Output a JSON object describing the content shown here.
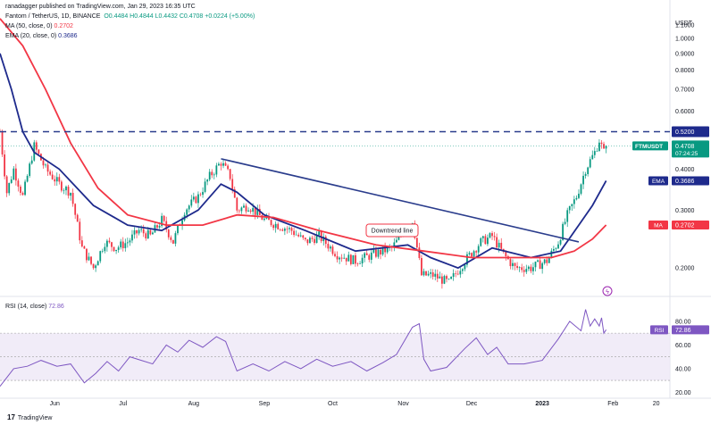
{
  "header": {
    "published": "ranadagger published on TradingView.com, Jan 29, 2023 16:35 UTC",
    "symbol": "Fantom / TetherUS, 1D, BINANCE",
    "ohlc": "O0.4484 H0.4844 L0.4432 C0.4708 +0.0224 (+5.00%)",
    "ma_label": "MA (50, close, 0)",
    "ma_value": "0.2702",
    "ema_label": "EMA (20, close, 0)",
    "ema_value": "0.3686",
    "rsi_label": "RSI (14, close)",
    "rsi_value": "72.86",
    "currency": "USDT"
  },
  "footer": {
    "logo_text": "TradingView"
  },
  "colors": {
    "up": "#089981",
    "down": "#f23645",
    "ma": "#f23645",
    "ema": "#1e2a8c",
    "trendline": "#2a3c8c",
    "resistance": "#2a3c8c",
    "rsi": "#7e57c2",
    "rsi_band": "#ede7f6"
  },
  "chart_data": [
    {
      "type": "candlestick",
      "title": "Fantom / TetherUS, 1D, BINANCE",
      "ylim": [
        0.17,
        1.2
      ],
      "y_scale": "log",
      "y_ticks": [
        "1.1000",
        "1.0000",
        "0.9000",
        "0.8000",
        "0.7000",
        "0.6000",
        "0.4000",
        "0.3000",
        "0.2000"
      ],
      "x_ticks": [
        "Jun",
        "Jul",
        "Aug",
        "Sep",
        "Oct",
        "Nov",
        "Dec",
        "2023",
        "Feb",
        "20"
      ],
      "x_dates": [
        "2022-06-01",
        "2022-07-01",
        "2022-08-01",
        "2022-09-01",
        "2022-10-01",
        "2022-11-01",
        "2022-12-01",
        "2023-01-01",
        "2023-02-01",
        "2023-02-20"
      ],
      "x_range": [
        "2022-05-08",
        "2023-02-26"
      ],
      "last_price": {
        "label": "FTMUSDT",
        "value": "0.4708",
        "countdown": "07:24:25"
      },
      "resistance": {
        "value": "0.5200",
        "label": "0.5200"
      },
      "trendline": {
        "label": "Downtrend line",
        "from": [
          "2022-08-13",
          0.43
        ],
        "to": [
          "2023-01-17",
          0.24
        ]
      },
      "price_path": [
        [
          "2022-05-08",
          0.52
        ],
        [
          "2022-05-11",
          0.34
        ],
        [
          "2022-05-14",
          0.4
        ],
        [
          "2022-05-18",
          0.33
        ],
        [
          "2022-05-23",
          0.47
        ],
        [
          "2022-05-28",
          0.4
        ],
        [
          "2022-06-03",
          0.36
        ],
        [
          "2022-06-08",
          0.34
        ],
        [
          "2022-06-13",
          0.23
        ],
        [
          "2022-06-18",
          0.2
        ],
        [
          "2022-06-23",
          0.24
        ],
        [
          "2022-06-28",
          0.23
        ],
        [
          "2022-07-03",
          0.24
        ],
        [
          "2022-07-08",
          0.26
        ],
        [
          "2022-07-13",
          0.25
        ],
        [
          "2022-07-18",
          0.28
        ],
        [
          "2022-07-23",
          0.24
        ],
        [
          "2022-07-28",
          0.3
        ],
        [
          "2022-08-03",
          0.33
        ],
        [
          "2022-08-08",
          0.38
        ],
        [
          "2022-08-13",
          0.42
        ],
        [
          "2022-08-17",
          0.38
        ],
        [
          "2022-08-20",
          0.3
        ],
        [
          "2022-08-25",
          0.31
        ],
        [
          "2022-09-01",
          0.28
        ],
        [
          "2022-09-07",
          0.27
        ],
        [
          "2022-09-13",
          0.26
        ],
        [
          "2022-09-19",
          0.24
        ],
        [
          "2022-09-25",
          0.25
        ],
        [
          "2022-10-03",
          0.22
        ],
        [
          "2022-10-11",
          0.21
        ],
        [
          "2022-10-19",
          0.22
        ],
        [
          "2022-10-27",
          0.23
        ],
        [
          "2022-11-05",
          0.28
        ],
        [
          "2022-11-09",
          0.19
        ],
        [
          "2022-11-14",
          0.19
        ],
        [
          "2022-11-21",
          0.18
        ],
        [
          "2022-11-28",
          0.21
        ],
        [
          "2022-12-05",
          0.24
        ],
        [
          "2022-12-10",
          0.25
        ],
        [
          "2022-12-15",
          0.22
        ],
        [
          "2022-12-20",
          0.2
        ],
        [
          "2022-12-27",
          0.2
        ],
        [
          "2023-01-03",
          0.21
        ],
        [
          "2023-01-08",
          0.24
        ],
        [
          "2023-01-12",
          0.29
        ],
        [
          "2023-01-16",
          0.33
        ],
        [
          "2023-01-20",
          0.4
        ],
        [
          "2023-01-24",
          0.45
        ],
        [
          "2023-01-26",
          0.49
        ],
        [
          "2023-01-28",
          0.45
        ],
        [
          "2023-01-29",
          0.47
        ]
      ],
      "series": [
        {
          "name": "EMA (20, close, 0)",
          "color": "#1e2a8c",
          "points": [
            [
              "2022-05-08",
              0.9
            ],
            [
              "2022-05-13",
              0.7
            ],
            [
              "2022-05-18",
              0.52
            ],
            [
              "2022-05-23",
              0.45
            ],
            [
              "2022-06-03",
              0.4
            ],
            [
              "2022-06-18",
              0.31
            ],
            [
              "2022-07-03",
              0.27
            ],
            [
              "2022-07-18",
              0.26
            ],
            [
              "2022-08-03",
              0.3
            ],
            [
              "2022-08-13",
              0.36
            ],
            [
              "2022-08-20",
              0.34
            ],
            [
              "2022-09-01",
              0.29
            ],
            [
              "2022-09-19",
              0.26
            ],
            [
              "2022-10-11",
              0.225
            ],
            [
              "2022-11-03",
              0.235
            ],
            [
              "2022-11-13",
              0.215
            ],
            [
              "2022-11-25",
              0.2
            ],
            [
              "2022-12-10",
              0.23
            ],
            [
              "2022-12-27",
              0.215
            ],
            [
              "2023-01-09",
              0.225
            ],
            [
              "2023-01-17",
              0.27
            ],
            [
              "2023-01-23",
              0.31
            ],
            [
              "2023-01-29",
              0.3686
            ]
          ]
        },
        {
          "name": "MA (50, close, 0)",
          "color": "#f23645",
          "points": [
            [
              "2022-05-08",
              1.15
            ],
            [
              "2022-05-18",
              0.95
            ],
            [
              "2022-05-28",
              0.7
            ],
            [
              "2022-06-08",
              0.48
            ],
            [
              "2022-06-20",
              0.35
            ],
            [
              "2022-07-03",
              0.29
            ],
            [
              "2022-07-20",
              0.27
            ],
            [
              "2022-08-05",
              0.27
            ],
            [
              "2022-08-20",
              0.29
            ],
            [
              "2022-09-05",
              0.285
            ],
            [
              "2022-09-25",
              0.26
            ],
            [
              "2022-10-20",
              0.235
            ],
            [
              "2022-11-10",
              0.225
            ],
            [
              "2022-12-01",
              0.215
            ],
            [
              "2022-12-20",
              0.215
            ],
            [
              "2023-01-05",
              0.215
            ],
            [
              "2023-01-15",
              0.225
            ],
            [
              "2023-01-23",
              0.245
            ],
            [
              "2023-01-29",
              0.2702
            ]
          ]
        }
      ]
    },
    {
      "type": "line",
      "title": "RSI (14, close)",
      "ylim": [
        18,
        95
      ],
      "y_ticks": [
        "80.00",
        "60.00",
        "40.00",
        "20.00"
      ],
      "band": [
        30,
        70
      ],
      "current_value": "72.86",
      "series": [
        {
          "name": "RSI (14, close)",
          "color": "#7e57c2",
          "points": [
            [
              "2022-05-08",
              25
            ],
            [
              "2022-05-14",
              40
            ],
            [
              "2022-05-20",
              42
            ],
            [
              "2022-05-26",
              47
            ],
            [
              "2022-06-02",
              42
            ],
            [
              "2022-06-08",
              44
            ],
            [
              "2022-06-14",
              28
            ],
            [
              "2022-06-19",
              36
            ],
            [
              "2022-06-24",
              46
            ],
            [
              "2022-06-29",
              38
            ],
            [
              "2022-07-04",
              50
            ],
            [
              "2022-07-09",
              47
            ],
            [
              "2022-07-14",
              44
            ],
            [
              "2022-07-20",
              60
            ],
            [
              "2022-07-25",
              54
            ],
            [
              "2022-07-30",
              64
            ],
            [
              "2022-08-05",
              58
            ],
            [
              "2022-08-11",
              67
            ],
            [
              "2022-08-15",
              63
            ],
            [
              "2022-08-20",
              38
            ],
            [
              "2022-08-27",
              44
            ],
            [
              "2022-09-03",
              38
            ],
            [
              "2022-09-10",
              46
            ],
            [
              "2022-09-17",
              40
            ],
            [
              "2022-09-24",
              48
            ],
            [
              "2022-10-01",
              42
            ],
            [
              "2022-10-09",
              46
            ],
            [
              "2022-10-16",
              38
            ],
            [
              "2022-10-23",
              45
            ],
            [
              "2022-10-29",
              52
            ],
            [
              "2022-11-05",
              75
            ],
            [
              "2022-11-08",
              78
            ],
            [
              "2022-11-10",
              48
            ],
            [
              "2022-11-13",
              38
            ],
            [
              "2022-11-20",
              41
            ],
            [
              "2022-11-28",
              57
            ],
            [
              "2022-12-03",
              66
            ],
            [
              "2022-12-08",
              52
            ],
            [
              "2022-12-12",
              58
            ],
            [
              "2022-12-17",
              44
            ],
            [
              "2022-12-24",
              44
            ],
            [
              "2023-01-01",
              47
            ],
            [
              "2023-01-08",
              65
            ],
            [
              "2023-01-13",
              80
            ],
            [
              "2023-01-18",
              72
            ],
            [
              "2023-01-20",
              90
            ],
            [
              "2023-01-22",
              76
            ],
            [
              "2023-01-24",
              82
            ],
            [
              "2023-01-26",
              76
            ],
            [
              "2023-01-27",
              83
            ],
            [
              "2023-01-28",
              70
            ],
            [
              "2023-01-29",
              72.86
            ]
          ]
        }
      ]
    }
  ]
}
